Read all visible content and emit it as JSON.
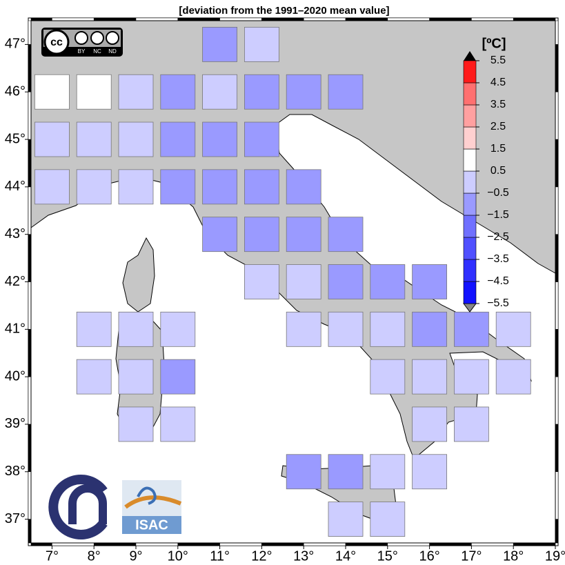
{
  "chart_data": {
    "type": "grid_map",
    "title": "[deviation from the 1991–2020 mean value]",
    "xticks": [
      {
        "value": 7,
        "label": "7°"
      },
      {
        "value": 8,
        "label": "8°"
      },
      {
        "value": 9,
        "label": "9°"
      },
      {
        "value": 10,
        "label": "10°"
      },
      {
        "value": 11,
        "label": "11°"
      },
      {
        "value": 12,
        "label": "12°"
      },
      {
        "value": 13,
        "label": "13°"
      },
      {
        "value": 14,
        "label": "14°"
      },
      {
        "value": 15,
        "label": "15°"
      },
      {
        "value": 16,
        "label": "16°"
      },
      {
        "value": 17,
        "label": "17°"
      },
      {
        "value": 18,
        "label": "18°"
      },
      {
        "value": 19,
        "label": "19°"
      }
    ],
    "yticks": [
      {
        "value": 37,
        "label": "37°"
      },
      {
        "value": 38,
        "label": "38°"
      },
      {
        "value": 39,
        "label": "39°"
      },
      {
        "value": 40,
        "label": "40°"
      },
      {
        "value": 41,
        "label": "41°"
      },
      {
        "value": 42,
        "label": "42°"
      },
      {
        "value": 43,
        "label": "43°"
      },
      {
        "value": 44,
        "label": "44°"
      },
      {
        "value": 45,
        "label": "45°"
      },
      {
        "value": 46,
        "label": "46°"
      },
      {
        "value": 47,
        "label": "47°"
      }
    ],
    "xlim": [
      6.5,
      19
    ],
    "ylim": [
      36.5,
      47.5
    ],
    "colorbar": {
      "label": "[ºC]",
      "ticks": [
        5.5,
        4.5,
        3.5,
        2.5,
        1.5,
        0.5,
        {
          "value": -0.5,
          "label": "−0.5"
        },
        {
          "value": -1.5,
          "label": "−1.5"
        },
        {
          "value": -2.5,
          "label": "−2.5"
        },
        {
          "value": -3.5,
          "label": "−3.5"
        },
        {
          "value": -4.5,
          "label": "−4.5"
        },
        {
          "value": -5.5,
          "label": "−5.5"
        }
      ],
      "lim": [
        -5.5,
        5.5
      ],
      "colors": [
        "#1212ff",
        "#3030ff",
        "#5050ff",
        "#7070ff",
        "#9a9aff",
        "#cdcdff",
        "#ffffff",
        "#ffd0d0",
        "#ffa0a0",
        "#ff7070",
        "#ff1a1a"
      ]
    },
    "cells": [
      {
        "lon": 11,
        "lat": 47,
        "value": -1
      },
      {
        "lon": 12,
        "lat": 47,
        "value": 0
      },
      {
        "lon": 7,
        "lat": 46,
        "value": 1
      },
      {
        "lon": 8,
        "lat": 46,
        "value": 1
      },
      {
        "lon": 9,
        "lat": 46,
        "value": 0
      },
      {
        "lon": 10,
        "lat": 46,
        "value": -1
      },
      {
        "lon": 11,
        "lat": 46,
        "value": 0
      },
      {
        "lon": 12,
        "lat": 46,
        "value": -1
      },
      {
        "lon": 13,
        "lat": 46,
        "value": -1
      },
      {
        "lon": 14,
        "lat": 46,
        "value": -1
      },
      {
        "lon": 7,
        "lat": 45,
        "value": 0
      },
      {
        "lon": 8,
        "lat": 45,
        "value": 0
      },
      {
        "lon": 9,
        "lat": 45,
        "value": 0
      },
      {
        "lon": 10,
        "lat": 45,
        "value": -1
      },
      {
        "lon": 11,
        "lat": 45,
        "value": -1
      },
      {
        "lon": 12,
        "lat": 45,
        "value": -1
      },
      {
        "lon": 7,
        "lat": 44,
        "value": 0
      },
      {
        "lon": 8,
        "lat": 44,
        "value": 0
      },
      {
        "lon": 9,
        "lat": 44,
        "value": 0
      },
      {
        "lon": 10,
        "lat": 44,
        "value": -1
      },
      {
        "lon": 11,
        "lat": 44,
        "value": -1
      },
      {
        "lon": 12,
        "lat": 44,
        "value": -1
      },
      {
        "lon": 13,
        "lat": 44,
        "value": -1
      },
      {
        "lon": 11,
        "lat": 43,
        "value": -1
      },
      {
        "lon": 12,
        "lat": 43,
        "value": -1
      },
      {
        "lon": 13,
        "lat": 43,
        "value": -1
      },
      {
        "lon": 14,
        "lat": 43,
        "value": -1
      },
      {
        "lon": 12,
        "lat": 42,
        "value": 0
      },
      {
        "lon": 13,
        "lat": 42,
        "value": 0
      },
      {
        "lon": 14,
        "lat": 42,
        "value": -1
      },
      {
        "lon": 15,
        "lat": 42,
        "value": -1
      },
      {
        "lon": 16,
        "lat": 42,
        "value": -1
      },
      {
        "lon": 8,
        "lat": 41,
        "value": 0
      },
      {
        "lon": 9,
        "lat": 41,
        "value": 0
      },
      {
        "lon": 10,
        "lat": 41,
        "value": 0
      },
      {
        "lon": 13,
        "lat": 41,
        "value": 0
      },
      {
        "lon": 14,
        "lat": 41,
        "value": 0
      },
      {
        "lon": 15,
        "lat": 41,
        "value": 0
      },
      {
        "lon": 16,
        "lat": 41,
        "value": -1
      },
      {
        "lon": 17,
        "lat": 41,
        "value": -1
      },
      {
        "lon": 18,
        "lat": 41,
        "value": 0
      },
      {
        "lon": 8,
        "lat": 40,
        "value": 0
      },
      {
        "lon": 9,
        "lat": 40,
        "value": 0
      },
      {
        "lon": 10,
        "lat": 40,
        "value": -1
      },
      {
        "lon": 15,
        "lat": 40,
        "value": 0
      },
      {
        "lon": 16,
        "lat": 40,
        "value": 0
      },
      {
        "lon": 17,
        "lat": 40,
        "value": 0
      },
      {
        "lon": 18,
        "lat": 40,
        "value": 0
      },
      {
        "lon": 9,
        "lat": 39,
        "value": 0
      },
      {
        "lon": 10,
        "lat": 39,
        "value": 0
      },
      {
        "lon": 16,
        "lat": 39,
        "value": 0
      },
      {
        "lon": 17,
        "lat": 39,
        "value": 0
      },
      {
        "lon": 13,
        "lat": 38,
        "value": -1
      },
      {
        "lon": 14,
        "lat": 38,
        "value": -1
      },
      {
        "lon": 15,
        "lat": 38,
        "value": 0
      },
      {
        "lon": 16,
        "lat": 38,
        "value": 0
      },
      {
        "lon": 14,
        "lat": 37,
        "value": 0
      },
      {
        "lon": 15,
        "lat": 37,
        "value": 0
      }
    ]
  },
  "logos": {
    "cc": "cc",
    "cc_terms": [
      "BY",
      "NC",
      "ND"
    ],
    "isac": "ISAC"
  }
}
